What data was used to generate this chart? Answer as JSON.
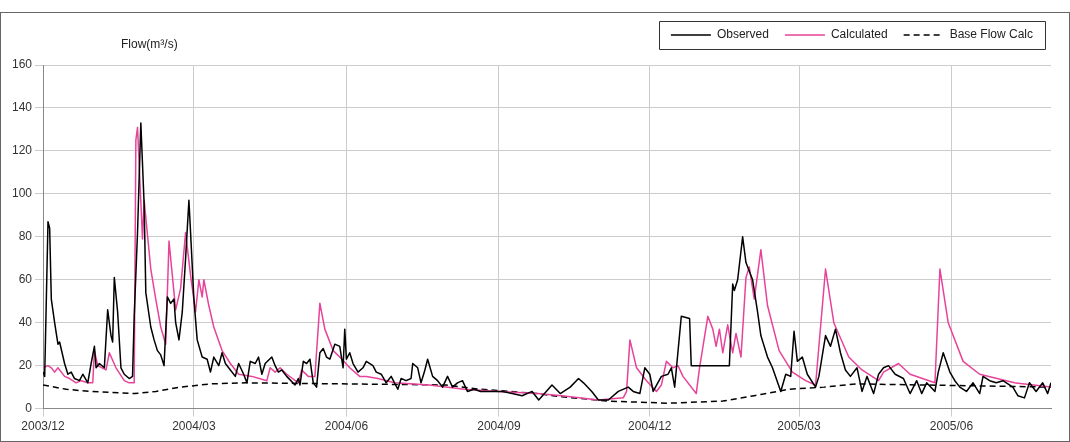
{
  "chart_data": {
    "type": "line",
    "ylabel": "Flow(m³/s)",
    "legend": "top right",
    "grid": true,
    "marker": "none",
    "xlim": [
      "2003-12-01",
      "2005-07-31"
    ],
    "xticks": [
      {
        "value": "2003-12-01",
        "label": "2003/12"
      },
      {
        "value": "2004-03-01",
        "label": "2004/03"
      },
      {
        "value": "2004-06-01",
        "label": "2004/06"
      },
      {
        "value": "2004-09-01",
        "label": "2004/09"
      },
      {
        "value": "2004-12-01",
        "label": "2004/12"
      },
      {
        "value": "2005-03-01",
        "label": "2005/03"
      },
      {
        "value": "2005-06-01",
        "label": "2005/06"
      }
    ],
    "ylim": [
      0,
      160
    ],
    "yticks": [
      0,
      20,
      40,
      60,
      80,
      100,
      120,
      140,
      160
    ],
    "series": [
      {
        "name": "Observed",
        "color": "#000000",
        "line_style": "solid",
        "x": [
          "2003-12-01",
          "2003-12-02",
          "2003-12-04",
          "2003-12-05",
          "2003-12-06",
          "2003-12-08",
          "2003-12-10",
          "2003-12-11",
          "2003-12-14",
          "2003-12-16",
          "2003-12-18",
          "2003-12-20",
          "2003-12-23",
          "2003-12-25",
          "2003-12-28",
          "2003-12-30",
          "2004-01-01",
          "2004-01-02",
          "2004-01-04",
          "2004-01-07",
          "2004-01-09",
          "2004-01-11",
          "2004-01-12",
          "2004-01-13",
          "2004-01-15",
          "2004-01-17",
          "2004-01-19",
          "2004-01-22",
          "2004-01-24",
          "2004-01-25",
          "2004-01-27",
          "2004-01-29",
          "2004-01-31",
          "2004-02-01",
          "2004-02-04",
          "2004-02-06",
          "2004-02-08",
          "2004-02-10",
          "2004-02-12",
          "2004-02-14",
          "2004-02-16",
          "2004-02-18",
          "2004-02-19",
          "2004-02-21",
          "2004-02-23",
          "2004-02-25",
          "2004-02-27",
          "2004-02-28",
          "2004-03-01",
          "2004-03-03",
          "2004-03-06",
          "2004-03-09",
          "2004-03-11",
          "2004-03-13",
          "2004-03-16",
          "2004-03-18",
          "2004-03-20",
          "2004-03-23",
          "2004-03-26",
          "2004-03-28",
          "2004-03-31",
          "2004-04-02",
          "2004-04-04",
          "2004-04-07",
          "2004-04-09",
          "2004-04-11",
          "2004-04-13",
          "2004-04-17",
          "2004-04-19",
          "2004-04-21",
          "2004-04-23",
          "2004-04-26",
          "2004-05-01",
          "2004-05-03",
          "2004-05-04",
          "2004-05-06",
          "2004-05-08",
          "2004-05-10",
          "2004-05-12",
          "2004-05-14",
          "2004-05-16",
          "2004-05-18",
          "2004-05-20",
          "2004-05-22",
          "2004-05-25",
          "2004-05-28",
          "2004-05-30",
          "2004-05-31",
          "2004-06-01",
          "2004-06-03",
          "2004-06-05",
          "2004-06-08",
          "2004-06-11",
          "2004-06-13",
          "2004-06-17",
          "2004-06-19",
          "2004-06-22",
          "2004-06-25",
          "2004-06-28",
          "2004-07-02",
          "2004-07-04",
          "2004-07-07",
          "2004-07-10",
          "2004-07-11",
          "2004-07-14",
          "2004-07-16",
          "2004-07-18",
          "2004-07-20",
          "2004-07-23",
          "2004-07-26",
          "2004-07-29",
          "2004-08-01",
          "2004-08-04",
          "2004-08-07",
          "2004-08-10",
          "2004-08-13",
          "2004-08-17",
          "2004-08-21",
          "2004-08-28",
          "2004-09-03",
          "2004-09-09",
          "2004-09-15",
          "2004-09-21",
          "2004-09-25",
          "2004-10-03",
          "2004-10-08",
          "2004-10-14",
          "2004-10-19",
          "2004-10-22",
          "2004-10-27",
          "2004-10-31",
          "2004-11-06",
          "2004-11-12",
          "2004-11-18",
          "2004-11-21",
          "2004-11-25",
          "2004-11-28",
          "2004-12-01",
          "2004-12-03",
          "2004-12-08",
          "2004-12-12",
          "2004-12-14",
          "2004-12-16",
          "2004-12-20",
          "2004-12-25",
          "2004-12-26",
          "2005-01-18",
          "2005-01-20",
          "2005-01-21",
          "2005-01-23",
          "2005-01-26",
          "2005-01-28",
          "2005-02-01",
          "2005-02-04",
          "2005-02-06",
          "2005-02-10",
          "2005-02-13",
          "2005-02-18",
          "2005-02-21",
          "2005-02-24",
          "2005-02-26",
          "2005-02-28",
          "2005-03-03",
          "2005-03-06",
          "2005-03-11",
          "2005-03-13",
          "2005-03-17",
          "2005-03-20",
          "2005-03-23",
          "2005-03-26",
          "2005-03-29",
          "2005-04-01",
          "2005-04-05",
          "2005-04-08",
          "2005-04-11",
          "2005-04-15",
          "2005-04-18",
          "2005-04-21",
          "2005-04-24",
          "2005-04-28",
          "2005-05-03",
          "2005-05-07",
          "2005-05-11",
          "2005-05-14",
          "2005-05-17",
          "2005-05-22",
          "2005-05-24",
          "2005-05-27",
          "2005-05-31",
          "2005-06-03",
          "2005-06-06",
          "2005-06-10",
          "2005-06-14",
          "2005-06-18",
          "2005-06-20",
          "2005-06-24",
          "2005-06-28",
          "2005-07-02",
          "2005-07-08",
          "2005-07-11",
          "2005-07-15",
          "2005-07-18",
          "2005-07-22",
          "2005-07-26",
          "2005-07-29",
          "2005-07-31"
        ],
        "values": [
          17,
          15,
          87,
          84,
          51,
          40,
          30,
          31,
          21,
          16,
          17,
          14,
          13,
          16,
          12,
          21,
          29,
          19,
          21,
          19,
          46,
          34,
          31,
          61,
          45,
          19,
          16,
          14,
          15,
          43,
          82,
          133,
          95,
          54,
          38,
          32,
          27,
          25,
          20,
          52,
          49,
          51,
          40,
          32,
          45,
          70,
          97,
          82,
          51,
          32,
          24,
          23,
          17,
          24,
          20,
          26,
          21,
          18,
          15,
          21,
          16,
          12,
          22,
          21,
          24,
          16,
          21,
          24,
          20,
          17,
          18,
          15,
          11,
          14,
          11,
          22,
          21,
          23,
          12,
          10,
          26,
          28,
          24,
          23,
          30,
          29,
          19,
          37,
          23,
          26,
          21,
          17,
          19,
          22,
          20,
          17,
          16,
          12,
          15,
          9,
          14,
          13,
          14,
          21,
          19,
          12,
          17,
          23,
          15,
          13,
          10,
          15,
          10,
          12,
          13,
          8,
          9,
          8,
          8,
          8,
          7,
          6,
          8,
          4,
          11,
          7,
          10,
          14,
          12,
          8,
          4,
          4,
          8,
          10,
          8,
          7,
          19,
          16,
          8,
          15,
          16,
          19,
          10,
          43,
          42,
          20,
          20,
          58,
          55,
          60,
          80,
          68,
          60,
          45,
          34,
          24,
          19,
          8,
          16,
          15,
          36,
          22,
          24,
          16,
          10,
          15,
          34,
          29,
          37,
          26,
          18,
          15,
          19,
          8,
          15,
          7,
          16,
          19,
          20,
          16,
          14,
          7,
          13,
          7,
          12,
          8,
          17,
          26,
          17,
          13,
          10,
          8,
          12,
          7,
          15,
          13,
          12,
          13,
          10,
          6,
          5,
          12,
          8,
          12,
          7,
          12
        ]
      },
      {
        "name": "Calculated",
        "color": "#e8439a",
        "line_style": "solid",
        "x": [
          "2003-12-01",
          "2003-12-04",
          "2003-12-06",
          "2003-12-08",
          "2003-12-10",
          "2003-12-14",
          "2003-12-17",
          "2003-12-21",
          "2003-12-24",
          "2003-12-28",
          "2003-12-31",
          "2004-01-01",
          "2004-01-03",
          "2004-01-08",
          "2004-01-10",
          "2004-01-14",
          "2004-01-19",
          "2004-01-22",
          "2004-01-25",
          "2004-01-26",
          "2004-01-27",
          "2004-01-30",
          "2004-01-31",
          "2004-02-04",
          "2004-02-07",
          "2004-02-10",
          "2004-02-13",
          "2004-02-15",
          "2004-02-18",
          "2004-02-19",
          "2004-02-22",
          "2004-02-25",
          "2004-02-28",
          "2004-03-02",
          "2004-03-04",
          "2004-03-06",
          "2004-03-07",
          "2004-03-10",
          "2004-03-13",
          "2004-03-18",
          "2004-03-23",
          "2004-03-28",
          "2004-04-05",
          "2004-04-14",
          "2004-04-16",
          "2004-04-19",
          "2004-04-22",
          "2004-04-26",
          "2004-05-03",
          "2004-05-05",
          "2004-05-09",
          "2004-05-13",
          "2004-05-16",
          "2004-05-19",
          "2004-05-24",
          "2004-05-28",
          "2004-06-03",
          "2004-06-09",
          "2004-06-13",
          "2004-06-20",
          "2004-06-30",
          "2004-07-21",
          "2004-08-11",
          "2004-09-01",
          "2004-09-24",
          "2004-10-09",
          "2004-10-31",
          "2004-11-15",
          "2004-11-17",
          "2004-11-19",
          "2004-11-23",
          "2004-11-29",
          "2004-12-05",
          "2004-12-08",
          "2004-12-11",
          "2004-12-15",
          "2004-12-18",
          "2004-12-21",
          "2004-12-29",
          "2004-12-31",
          "2005-01-05",
          "2005-01-08",
          "2005-01-10",
          "2005-01-12",
          "2005-01-14",
          "2005-01-17",
          "2005-01-20",
          "2005-01-22",
          "2005-01-25",
          "2005-01-28",
          "2005-01-30",
          "2005-02-02",
          "2005-02-06",
          "2005-02-10",
          "2005-02-17",
          "2005-02-25",
          "2005-03-05",
          "2005-03-11",
          "2005-03-17",
          "2005-03-22",
          "2005-03-31",
          "2005-04-08",
          "2005-04-18",
          "2005-04-21",
          "2005-04-30",
          "2005-05-07",
          "2005-05-22",
          "2005-05-25",
          "2005-05-30",
          "2005-06-08",
          "2005-06-18",
          "2005-07-09",
          "2005-07-31"
        ],
        "values": [
          19,
          20,
          19,
          17,
          19,
          15,
          14,
          12,
          13,
          12,
          12,
          27,
          20,
          18,
          26,
          19,
          13,
          12,
          12,
          125,
          131,
          79,
          97,
          65,
          51,
          38,
          30,
          78,
          54,
          46,
          56,
          82,
          62,
          45,
          60,
          52,
          60,
          48,
          38,
          27,
          21,
          16,
          15,
          13,
          19,
          17,
          19,
          16,
          12,
          18,
          15,
          15,
          49,
          37,
          27,
          24,
          19,
          15,
          15,
          14,
          12,
          11,
          9,
          8,
          7,
          6,
          4,
          5,
          8,
          32,
          19,
          13,
          8,
          11,
          22,
          19,
          20,
          15,
          7,
          19,
          43,
          37,
          29,
          37,
          26,
          39,
          26,
          35,
          24,
          61,
          66,
          51,
          74,
          48,
          27,
          17,
          13,
          11,
          65,
          40,
          24,
          18,
          13,
          17,
          21,
          16,
          12,
          65,
          40,
          22,
          16,
          12,
          10
        ]
      },
      {
        "name": "Base Flow Calc",
        "color": "#000000",
        "line_style": "dashed",
        "x": [
          "2003-12-01",
          "2003-12-15",
          "2003-12-29",
          "2004-01-11",
          "2004-01-25",
          "2004-02-07",
          "2004-02-22",
          "2004-03-11",
          "2004-04-01",
          "2004-07-31",
          "2004-08-21",
          "2004-09-24",
          "2004-10-09",
          "2004-11-06",
          "2004-12-12",
          "2005-01-14",
          "2005-02-02",
          "2005-02-23",
          "2005-03-16",
          "2005-04-05",
          "2005-07-31"
        ],
        "values": [
          11,
          9,
          8,
          7.5,
          7,
          8,
          10,
          11.5,
          12,
          11,
          9,
          7,
          5.5,
          3.5,
          2.5,
          3.5,
          6,
          9,
          10,
          11.5,
          10
        ]
      }
    ]
  }
}
